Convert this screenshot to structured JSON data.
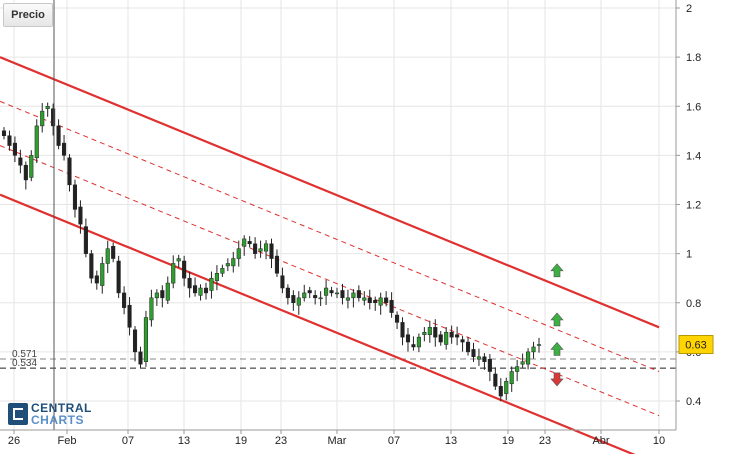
{
  "chart_data": {
    "type": "candlestick",
    "title": "",
    "legend_label": "Precio",
    "ylim": [
      0.28,
      2.0
    ],
    "y_ticks": [
      "0.4",
      "0.6",
      "0.8",
      "1",
      "1.2",
      "1.4",
      "1.6",
      "1.8",
      "2"
    ],
    "x_ticks": [
      "26",
      "Feb",
      "07",
      "13",
      "19",
      "23",
      "Mar",
      "07",
      "13",
      "19",
      "23",
      "Abr",
      "10"
    ],
    "current_price": "0.63",
    "levels": [
      {
        "label": "0.571",
        "value": 0.571
      },
      {
        "label": "0.534",
        "value": 0.534
      }
    ],
    "channel_lines": [
      {
        "style": "solid",
        "from": [
          0,
          1.8
        ],
        "to": [
          120,
          0.7
        ]
      },
      {
        "style": "dashed",
        "from": [
          0,
          1.62
        ],
        "to": [
          120,
          0.52
        ]
      },
      {
        "style": "dashed",
        "from": [
          0,
          1.44
        ],
        "to": [
          120,
          0.34
        ]
      },
      {
        "style": "solid",
        "from": [
          0,
          1.24
        ],
        "to": [
          120,
          0.14
        ]
      }
    ],
    "signals": [
      {
        "direction": "up",
        "color": "#3cb043",
        "value": 0.93
      },
      {
        "direction": "up",
        "color": "#3cb043",
        "value": 0.73
      },
      {
        "direction": "up",
        "color": "#3cb043",
        "value": 0.61
      },
      {
        "direction": "down",
        "color": "#d83a3a",
        "value": 0.49
      }
    ],
    "close_path": [
      1.48,
      1.44,
      1.4,
      1.36,
      1.3,
      1.4,
      1.52,
      1.58,
      1.6,
      1.52,
      1.44,
      1.4,
      1.28,
      1.18,
      1.12,
      1.0,
      0.9,
      0.88,
      0.96,
      1.02,
      0.98,
      0.84,
      0.78,
      0.7,
      0.6,
      0.55,
      0.74,
      0.82,
      0.84,
      0.82,
      0.88,
      0.96,
      0.98,
      0.9,
      0.86,
      0.84,
      0.86,
      0.84,
      0.9,
      0.92,
      0.94,
      0.96,
      0.98,
      1.02,
      1.06,
      1.04,
      1.0,
      1.02,
      1.04,
      0.98,
      0.92,
      0.86,
      0.82,
      0.8,
      0.82,
      0.84,
      0.84,
      0.82,
      0.82,
      0.86,
      0.84,
      0.84,
      0.82,
      0.82,
      0.84,
      0.82,
      0.82,
      0.8,
      0.8,
      0.82,
      0.8,
      0.76,
      0.72,
      0.66,
      0.64,
      0.62,
      0.66,
      0.68,
      0.7,
      0.66,
      0.64,
      0.68,
      0.66,
      0.66,
      0.64,
      0.6,
      0.58,
      0.58,
      0.56,
      0.52,
      0.46,
      0.42,
      0.48,
      0.52,
      0.54,
      0.56,
      0.6,
      0.62,
      0.63
    ],
    "colors": {
      "up": "#2e9e2e",
      "down": "#222222",
      "channel": "#e03030",
      "grid": "#e6e6e6",
      "price_badge": "#ffd400"
    }
  }
}
